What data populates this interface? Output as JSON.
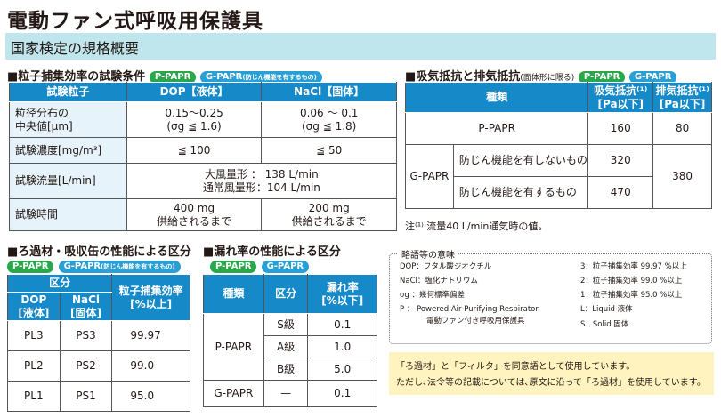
{
  "title": "電動ファン式呼吸用保護具",
  "banner": "国家検定の規格概要",
  "colors": {
    "header_blue": "#1689c8",
    "banner_bg": "#bfe6ec",
    "pill_green": "#2aa74a",
    "pill_blue": "#2a9fd6",
    "light_cell": "#e6f3fb",
    "note_bg": "#fff3bf"
  },
  "s1": {
    "title": "■粒子捕集効率の試験条件",
    "pill_p": "P-PAPR",
    "pill_g": "G-PAPR",
    "pill_g_note": "(防じん機能を有するもの)",
    "headers": [
      "試験粒子",
      "DOP【液体】",
      "NaCl【固体】"
    ],
    "r1": [
      "粒径分布の",
      "中央値[μm]",
      "0.15〜0.25",
      "(σg ≦ 1.6)",
      "0.06 〜 0.1",
      "(σg ≦ 1.8)"
    ],
    "r2": [
      "試験濃度[mg/m³]",
      "≦ 100",
      "≦ 50"
    ],
    "r3": [
      "試験流量[L/min]",
      "大風量形 ： 138 L/min",
      "通常風量形：104 L/min"
    ],
    "r4": [
      "試験時間",
      "400 mg",
      "供給されるまで",
      "200 mg",
      "供給されるまで"
    ]
  },
  "s2": {
    "title": "■吸気抵抗と排気抵抗",
    "note": "(面体形に限る)",
    "pill_p": "P-PAPR",
    "pill_g": "G-PAPR",
    "headers": [
      "種類",
      "吸気抵抗⁽¹⁾",
      "[Pa以下]",
      "排気抵抗⁽¹⁾",
      "[Pa以下]"
    ],
    "p": [
      "P-PAPR",
      "160",
      "80"
    ],
    "g": [
      "G-PAPR",
      "防じん機能を有しないもの",
      "320",
      "380",
      "防じん機能を有するもの",
      "470"
    ],
    "footnote": "注⁽¹⁾ 流量40 L/min通気時の値。"
  },
  "s3": {
    "title": "■ろ過材・吸収缶の性能による区分",
    "pill_p": "P-PAPR",
    "pill_g": "G-PAPR",
    "pill_g_note": "(防じん機能を有するもの)",
    "headers": [
      "区分",
      "DOP",
      "[液体]",
      "NaCl",
      "[固体]",
      "粒子捕集効率",
      "[%以上]"
    ],
    "rows": [
      [
        "PL3",
        "PS3",
        "99.97"
      ],
      [
        "PL2",
        "PS2",
        "99.0"
      ],
      [
        "PL1",
        "PS1",
        "95.0"
      ]
    ]
  },
  "s4": {
    "title": "■漏れ率の性能による区分",
    "pill_p": "P-PAPR",
    "pill_g": "G-PAPR",
    "headers": [
      "種類",
      "区分",
      "漏れ率",
      "[%以下]"
    ],
    "rows": [
      [
        "P-PAPR",
        "S級",
        "0.1"
      ],
      [
        "A級",
        "1.0"
      ],
      [
        "B級",
        "5.0"
      ],
      [
        "G-PAPR",
        "—",
        "0.1"
      ]
    ]
  },
  "abbr": {
    "title": "略語等の意味",
    "left": [
      "DOP：フタル酸ジオクチル",
      "NaCl：塩化ナトリウム",
      "σg ：幾何標準偏差",
      "P ： Powered Air Purifying Respirator",
      "電動ファン付き呼吸用保護具"
    ],
    "right": [
      "3：粒子捕集効率 99.97 %以上",
      "2：粒子捕集効率 99.0 %以上",
      "1：粒子捕集効率 95.0 %以上",
      "L：Liquid 液体",
      "S：Solid 固体"
    ]
  },
  "usage": [
    "「ろ過材」と「フィルタ」を同意語として使用しています。",
    "ただし､法令等の記載については､原文に沿って「ろ過材」を使用しています。"
  ]
}
